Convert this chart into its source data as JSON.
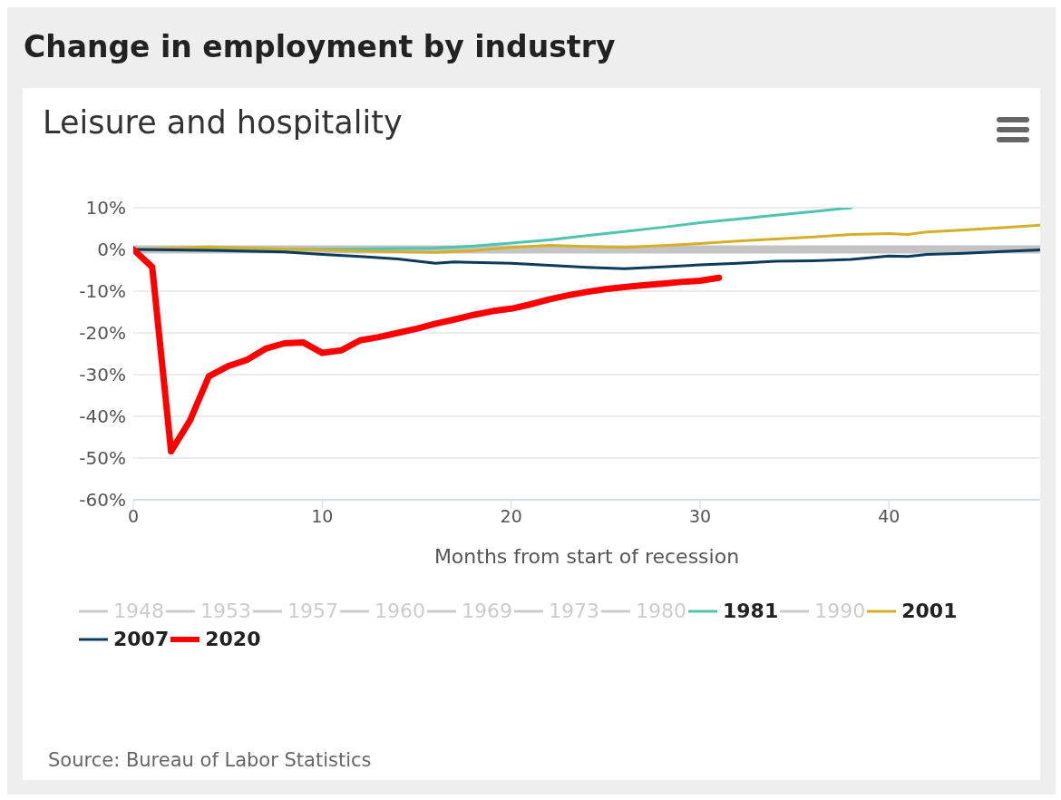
{
  "chart_data": {
    "type": "line",
    "title": "Change in employment by industry",
    "subtitle": "Leisure and hospitality",
    "xlabel": "Months from start of recession",
    "xlim": [
      0,
      48
    ],
    "xticks": [
      0,
      10,
      20,
      30,
      40
    ],
    "ylim": [
      -60,
      10
    ],
    "yticks": [
      {
        "value": -60,
        "label": "-60%"
      },
      {
        "value": -50,
        "label": "-50%"
      },
      {
        "value": -40,
        "label": "-40%"
      },
      {
        "value": -30,
        "label": "-30%"
      },
      {
        "value": -20,
        "label": "-20%"
      },
      {
        "value": -10,
        "label": "-10%"
      },
      {
        "value": 0,
        "label": "0%"
      },
      {
        "value": 10,
        "label": "10%"
      }
    ],
    "grid": "y",
    "legend": "bottom",
    "marker": "none",
    "line_style": "solid",
    "ref_lines": [
      {
        "axis": "y",
        "value": 0,
        "label": null,
        "color": "#c4c4c4"
      }
    ],
    "annotations": [
      "Source: Bureau of Labor Statistics"
    ],
    "series": [
      {
        "name": "1948",
        "color": "#cccccc"
      },
      {
        "name": "1953",
        "color": "#cccccc"
      },
      {
        "name": "1957",
        "color": "#cccccc"
      },
      {
        "name": "1960",
        "color": "#cccccc"
      },
      {
        "name": "1969",
        "color": "#cccccc"
      },
      {
        "name": "1973",
        "color": "#cccccc"
      },
      {
        "name": "1980",
        "color": "#cccccc"
      },
      {
        "name": "1981",
        "color": "#4fc4ae",
        "x": [
          0,
          4,
          8,
          12,
          16,
          18,
          20,
          22,
          24,
          26,
          28,
          30,
          32,
          34,
          36,
          38
        ],
        "values": [
          0,
          0,
          0,
          0.1,
          0.3,
          0.8,
          1.5,
          2.3,
          3.3,
          4.3,
          5.3,
          6.4,
          7.3,
          8.2,
          9.1,
          10
        ]
      },
      {
        "name": "1990",
        "color": "#cccccc"
      },
      {
        "name": "2001",
        "color": "#d4b02a",
        "x": [
          0,
          4,
          8,
          12,
          16,
          18,
          20,
          22,
          24,
          26,
          28,
          30,
          32,
          34,
          36,
          38,
          40,
          41,
          42,
          44,
          46,
          48
        ],
        "values": [
          0,
          0.6,
          0.1,
          -0.4,
          -0.7,
          -0.3,
          0.5,
          1.0,
          0.7,
          0.5,
          0.9,
          1.4,
          2.0,
          2.5,
          3.0,
          3.6,
          3.8,
          3.6,
          4.2,
          4.7,
          5.2,
          5.8
        ]
      },
      {
        "name": "2007",
        "color": "#0d3b5c",
        "x": [
          0,
          4,
          8,
          10,
          12,
          14,
          16,
          17,
          20,
          22,
          24,
          26,
          28,
          30,
          32,
          34,
          36,
          38,
          40,
          41,
          42,
          44,
          46,
          48
        ],
        "values": [
          0,
          -0.2,
          -0.6,
          -1.2,
          -1.7,
          -2.3,
          -3.3,
          -3.0,
          -3.3,
          -3.8,
          -4.3,
          -4.6,
          -4.2,
          -3.7,
          -3.3,
          -2.8,
          -2.7,
          -2.4,
          -1.6,
          -1.7,
          -1.2,
          -0.9,
          -0.5,
          -0.1
        ]
      },
      {
        "name": "2020",
        "color": "#ff0000",
        "x": [
          0,
          1,
          2,
          3,
          4,
          5,
          6,
          7,
          8,
          9,
          10,
          11,
          12,
          13,
          14,
          15,
          16,
          17,
          18,
          19,
          20,
          21,
          22,
          23,
          24,
          25,
          26,
          27,
          28,
          29,
          30,
          31
        ],
        "values": [
          0,
          -4.2,
          -48.4,
          -41,
          -30.4,
          -28,
          -26.5,
          -23.8,
          -22.5,
          -22.3,
          -24.8,
          -24.2,
          -21.8,
          -21,
          -20,
          -19,
          -17.8,
          -16.8,
          -15.7,
          -14.8,
          -14.2,
          -13.2,
          -12,
          -11,
          -10.2,
          -9.5,
          -9,
          -8.6,
          -8.2,
          -7.8,
          -7.5,
          -6.8
        ]
      }
    ]
  }
}
